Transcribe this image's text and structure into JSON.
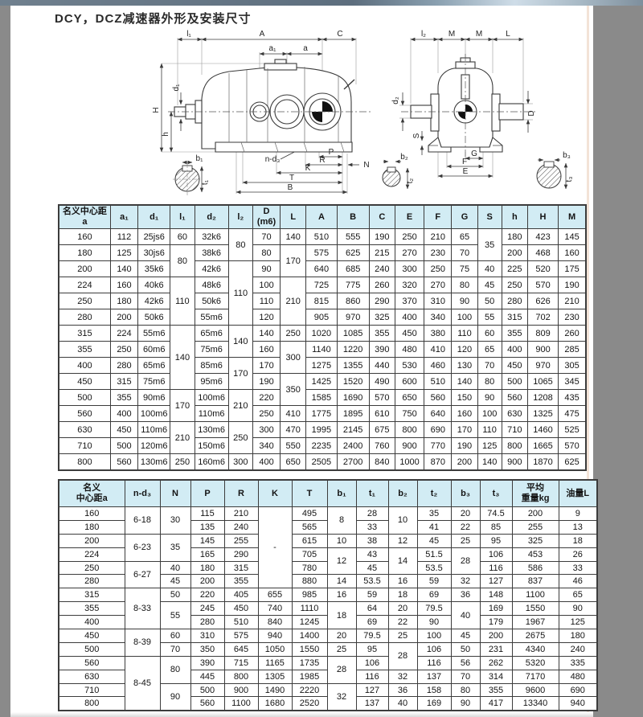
{
  "page": {
    "title": "DCY，DCZ减速器外形及安装尺寸"
  },
  "colors": {
    "header_bg": "#d2ecf4",
    "table_border": "#3c3c3c",
    "page_margin": "#8a8a8a",
    "top_bar": "#5d6e7e",
    "right_accent": "#f0dccd"
  },
  "drawings": {
    "left": {
      "labels": {
        "l1": "l₁",
        "A": "A",
        "C": "C",
        "a1": "a₁",
        "a": "a",
        "H": "H",
        "d1": "d₁",
        "h": "h",
        "nd3": "n-d₃",
        "P": "P",
        "R": "R",
        "N": "N",
        "K": "K",
        "T": "T",
        "B": "B",
        "b1": "b₁",
        "t1": "t₁"
      }
    },
    "right": {
      "labels": {
        "l2": "l₂",
        "M1": "M",
        "M2": "M",
        "L": "L",
        "d2": "d₂",
        "D": "D",
        "S": "S",
        "G": "G",
        "F": "F",
        "E": "E",
        "b2": "b₂",
        "t2": "t₂",
        "b3": "b₃",
        "t3": "t₃"
      }
    }
  },
  "table1": {
    "headers": [
      "名义中心距a",
      "a₁",
      "d₁",
      "l₁",
      "d₂",
      "l₂",
      "D\n(m6)",
      "L",
      "A",
      "B",
      "C",
      "E",
      "F",
      "G",
      "S",
      "h",
      "H",
      "M"
    ],
    "rows": [
      [
        "160",
        "112",
        "25js6",
        "60",
        "32k6",
        {
          "v": "80",
          "rs": 2
        },
        "70",
        "140",
        "510",
        "555",
        "190",
        "250",
        "210",
        "65",
        {
          "v": "35",
          "rs": 2
        },
        "180",
        "423",
        "145"
      ],
      [
        "180",
        "125",
        "30js6",
        {
          "v": "80",
          "rs": 2
        },
        "38k6",
        "80",
        {
          "v": "170",
          "rs": 2
        },
        "575",
        "625",
        "215",
        "270",
        "230",
        "70",
        "200",
        "468",
        "160"
      ],
      [
        "200",
        "140",
        "35k6",
        "42k6",
        {
          "v": "110",
          "rs": 4
        },
        "90",
        "640",
        "685",
        "240",
        "300",
        "250",
        "75",
        "40",
        "225",
        "520",
        "175"
      ],
      [
        "224",
        "160",
        "40k6",
        {
          "v": "110",
          "rs": 3
        },
        "48k6",
        "100",
        {
          "v": "210",
          "rs": 3
        },
        "725",
        "775",
        "260",
        "320",
        "270",
        "80",
        "45",
        "250",
        "570",
        "190"
      ],
      [
        "250",
        "180",
        "42k6",
        "50k6",
        "110",
        "815",
        "860",
        "290",
        "370",
        "310",
        "90",
        "50",
        "280",
        "626",
        "210"
      ],
      [
        "280",
        "200",
        "50k6",
        "55m6",
        "120",
        "905",
        "970",
        "325",
        "400",
        "340",
        "100",
        "55",
        "315",
        "702",
        "230"
      ],
      [
        "315",
        "224",
        "55m6",
        {
          "v": "140",
          "rs": 4
        },
        "65m6",
        {
          "v": "140",
          "rs": 2
        },
        "140",
        "250",
        "1020",
        "1085",
        "355",
        "450",
        "380",
        "110",
        "60",
        "355",
        "809",
        "260"
      ],
      [
        "355",
        "250",
        "60m6",
        "75m6",
        "160",
        {
          "v": "300",
          "rs": 2
        },
        "1140",
        "1220",
        "390",
        "480",
        "410",
        "120",
        "65",
        "400",
        "900",
        "285"
      ],
      [
        "400",
        "280",
        "65m6",
        "85m6",
        {
          "v": "170",
          "rs": 2
        },
        "170",
        "1275",
        "1355",
        "440",
        "530",
        "460",
        "130",
        "70",
        "450",
        "970",
        "305"
      ],
      [
        "450",
        "315",
        "75m6",
        "95m6",
        "190",
        {
          "v": "350",
          "rs": 2
        },
        "1425",
        "1520",
        "490",
        "600",
        "510",
        "140",
        "80",
        "500",
        "1065",
        "345"
      ],
      [
        "500",
        "355",
        "90m6",
        {
          "v": "170",
          "rs": 2
        },
        "100m6",
        {
          "v": "210",
          "rs": 2
        },
        "220",
        "1585",
        "1690",
        "570",
        "650",
        "560",
        "150",
        "90",
        "560",
        "1208",
        "435"
      ],
      [
        "560",
        "400",
        "100m6",
        "110m6",
        "250",
        "410",
        "1775",
        "1895",
        "610",
        "750",
        "640",
        "160",
        "100",
        "630",
        "1325",
        "475"
      ],
      [
        "630",
        "450",
        "110m6",
        {
          "v": "210",
          "rs": 2
        },
        "130m6",
        {
          "v": "250",
          "rs": 2
        },
        "300",
        "470",
        "1995",
        "2145",
        "675",
        "800",
        "690",
        "170",
        "110",
        "710",
        "1460",
        "525"
      ],
      [
        "710",
        "500",
        "120m6",
        "150m6",
        "340",
        "550",
        "2235",
        "2400",
        "760",
        "900",
        "770",
        "190",
        "125",
        "800",
        "1665",
        "570"
      ],
      [
        "800",
        "560",
        "130m6",
        "250",
        "160m6",
        "300",
        "400",
        "650",
        "2505",
        "2700",
        "840",
        "1000",
        "870",
        "200",
        "140",
        "900",
        "1870",
        "625"
      ]
    ]
  },
  "table2": {
    "headers": [
      "名义\n中心距a",
      "n-d₃",
      "N",
      "P",
      "R",
      "K",
      "T",
      "b₁",
      "t₁",
      "b₂",
      "t₂",
      "b₃",
      "t₃",
      "平均\n重量kg",
      "油量L"
    ],
    "rows": [
      [
        "160",
        {
          "v": "6-18",
          "rs": 2
        },
        {
          "v": "30",
          "rs": 2
        },
        "115",
        "210",
        {
          "v": "-",
          "rs": 6
        },
        "495",
        {
          "v": "8",
          "rs": 2
        },
        "28",
        {
          "v": "10",
          "rs": 2
        },
        "35",
        "20",
        "74.5",
        "200",
        "9"
      ],
      [
        "180",
        "135",
        "240",
        "565",
        "33",
        "41",
        "22",
        "85",
        "255",
        "13"
      ],
      [
        "200",
        {
          "v": "6-23",
          "rs": 2
        },
        {
          "v": "35",
          "rs": 2
        },
        "145",
        "255",
        "615",
        "10",
        "38",
        "12",
        "45",
        "25",
        "95",
        "325",
        "18"
      ],
      [
        "224",
        "165",
        "290",
        "705",
        {
          "v": "12",
          "rs": 2
        },
        "43",
        {
          "v": "14",
          "rs": 2
        },
        "51.5",
        {
          "v": "28",
          "rs": 2
        },
        "106",
        "453",
        "26"
      ],
      [
        "250",
        {
          "v": "6-27",
          "rs": 2
        },
        "40",
        "180",
        "315",
        "780",
        "45",
        "53.5",
        "116",
        "586",
        "33"
      ],
      [
        "280",
        "45",
        "200",
        "355",
        "880",
        "14",
        "53.5",
        "16",
        "59",
        "32",
        "127",
        "837",
        "46"
      ],
      [
        "315",
        {
          "v": "8-33",
          "rs": 3
        },
        "50",
        "220",
        "405",
        "655",
        "985",
        "16",
        "59",
        "18",
        "69",
        "36",
        "148",
        "1100",
        "65"
      ],
      [
        "355",
        {
          "v": "55",
          "rs": 2
        },
        "245",
        "450",
        "740",
        "1110",
        {
          "v": "18",
          "rs": 2
        },
        "64",
        "20",
        "79.5",
        {
          "v": "40",
          "rs": 2
        },
        "169",
        "1550",
        "90"
      ],
      [
        "400",
        "280",
        "510",
        "840",
        "1245",
        "69",
        "22",
        "90",
        "179",
        "1967",
        "125"
      ],
      [
        "450",
        {
          "v": "8-39",
          "rs": 2
        },
        "60",
        "310",
        "575",
        "940",
        "1400",
        "20",
        "79.5",
        "25",
        "100",
        "45",
        "200",
        "2675",
        "180"
      ],
      [
        "500",
        "70",
        "350",
        "645",
        "1050",
        "1550",
        "25",
        "95",
        {
          "v": "28",
          "rs": 2
        },
        "106",
        "50",
        "231",
        "4340",
        "240"
      ],
      [
        "560",
        {
          "v": "8-45",
          "rs": 4
        },
        {
          "v": "80",
          "rs": 2
        },
        "390",
        "715",
        "1165",
        "1735",
        {
          "v": "28",
          "rs": 2
        },
        "106",
        "116",
        "56",
        "262",
        "5320",
        "335"
      ],
      [
        "630",
        "445",
        "800",
        "1305",
        "1985",
        "116",
        "32",
        "137",
        "70",
        "314",
        "7170",
        "480"
      ],
      [
        "710",
        {
          "v": "90",
          "rs": 2
        },
        "500",
        "900",
        "1490",
        "2220",
        {
          "v": "32",
          "rs": 2
        },
        "127",
        "36",
        "158",
        "80",
        "355",
        "9600",
        "690"
      ],
      [
        "800",
        "560",
        "1100",
        "1680",
        "2520",
        "137",
        "40",
        "169",
        "90",
        "417",
        "13340",
        "940"
      ]
    ]
  }
}
